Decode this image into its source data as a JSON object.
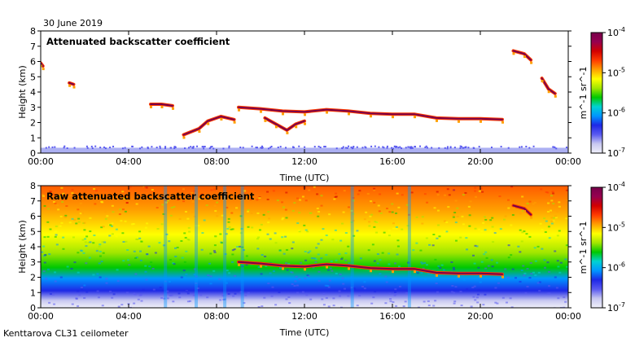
{
  "page": {
    "date": "30 June 2019",
    "footer": "Kenttarova CL31 ceilometer"
  },
  "colors": {
    "colormap": [
      "#f0f0fa",
      "#c8c8f0",
      "#5a5af0",
      "#1e28e6",
      "#0096ff",
      "#00d2d2",
      "#00c800",
      "#a0e600",
      "#ffff00",
      "#ffa000",
      "#ff3c00",
      "#d20000",
      "#960050",
      "#78004b"
    ],
    "background": "#ffffff"
  },
  "chart_data": [
    {
      "type": "heatmap",
      "title": "Attenuated backscatter coefficient",
      "xlabel": "Time (UTC)",
      "ylabel": "Height (km)",
      "x_ticks": [
        "00:00",
        "04:00",
        "08:00",
        "12:00",
        "16:00",
        "20:00",
        "00:00"
      ],
      "y_ticks": [
        "0",
        "1",
        "2",
        "3",
        "4",
        "5",
        "6",
        "7",
        "8"
      ],
      "xlim_hours": [
        0,
        24
      ],
      "ylim": [
        0,
        8
      ],
      "colorbar": {
        "scale": "log",
        "ticks": [
          "10^-7",
          "10^-6",
          "10^-5",
          "10^-4"
        ],
        "unit": "m^-1 sr^-1",
        "min": 1e-07,
        "max": 0.0001
      },
      "features": [
        {
          "kind": "surface_layer",
          "time_start": 0,
          "time_end": 24,
          "height_top": 0.35
        },
        {
          "kind": "cloud_layer",
          "points": [
            [
              9.0,
              3.0
            ],
            [
              10.0,
              2.9
            ],
            [
              11.0,
              2.75
            ],
            [
              12.0,
              2.7
            ],
            [
              13.0,
              2.85
            ],
            [
              14.0,
              2.75
            ],
            [
              15.0,
              2.6
            ],
            [
              16.0,
              2.55
            ],
            [
              17.0,
              2.55
            ],
            [
              18.0,
              2.3
            ],
            [
              19.0,
              2.25
            ],
            [
              20.0,
              2.25
            ],
            [
              21.0,
              2.2
            ]
          ]
        },
        {
          "kind": "cloud_layer",
          "points": [
            [
              5.0,
              3.2
            ],
            [
              5.5,
              3.2
            ],
            [
              6.0,
              3.1
            ]
          ]
        },
        {
          "kind": "cloud_layer",
          "points": [
            [
              21.5,
              6.7
            ],
            [
              22.0,
              6.5
            ],
            [
              22.3,
              6.1
            ]
          ]
        },
        {
          "kind": "cloud_layer",
          "points": [
            [
              0.0,
              5.9
            ],
            [
              0.1,
              5.7
            ]
          ]
        },
        {
          "kind": "cloud_layer",
          "points": [
            [
              1.3,
              4.6
            ],
            [
              1.5,
              4.5
            ]
          ]
        },
        {
          "kind": "cloud_layer",
          "points": [
            [
              22.8,
              4.9
            ],
            [
              23.1,
              4.2
            ],
            [
              23.4,
              3.9
            ]
          ]
        },
        {
          "kind": "cloud_layer",
          "points": [
            [
              6.5,
              1.2
            ],
            [
              7.2,
              1.6
            ],
            [
              7.6,
              2.1
            ],
            [
              8.2,
              2.4
            ],
            [
              8.8,
              2.2
            ]
          ]
        },
        {
          "kind": "cloud_layer",
          "points": [
            [
              10.2,
              2.3
            ],
            [
              10.7,
              1.9
            ],
            [
              11.2,
              1.5
            ],
            [
              11.6,
              1.9
            ],
            [
              12.0,
              2.1
            ]
          ]
        }
      ]
    },
    {
      "type": "heatmap",
      "title": "Raw attenuated backscatter coefficient",
      "xlabel": "Time (UTC)",
      "ylabel": "Height (km)",
      "x_ticks": [
        "00:00",
        "04:00",
        "08:00",
        "12:00",
        "16:00",
        "20:00",
        "00:00"
      ],
      "y_ticks": [
        "0",
        "1",
        "2",
        "3",
        "4",
        "5",
        "6",
        "7",
        "8"
      ],
      "xlim_hours": [
        0,
        24
      ],
      "ylim": [
        0,
        8
      ],
      "colorbar": {
        "scale": "log",
        "ticks": [
          "10^-7",
          "10^-6",
          "10^-5",
          "10^-4"
        ],
        "unit": "m^-1 sr^-1",
        "min": 1e-07,
        "max": 0.0001
      },
      "features": [
        {
          "kind": "noise_background",
          "gradient": "blue near surface to red aloft"
        },
        {
          "kind": "cloud_layer",
          "points": [
            [
              9.0,
              3.0
            ],
            [
              10.0,
              2.9
            ],
            [
              11.0,
              2.75
            ],
            [
              12.0,
              2.7
            ],
            [
              13.0,
              2.85
            ],
            [
              14.0,
              2.75
            ],
            [
              15.0,
              2.6
            ],
            [
              16.0,
              2.55
            ],
            [
              17.0,
              2.55
            ],
            [
              18.0,
              2.3
            ],
            [
              19.0,
              2.25
            ],
            [
              20.0,
              2.25
            ],
            [
              21.0,
              2.2
            ]
          ]
        },
        {
          "kind": "cloud_layer",
          "points": [
            [
              21.5,
              6.7
            ],
            [
              22.0,
              6.5
            ],
            [
              22.3,
              6.1
            ]
          ]
        }
      ]
    }
  ]
}
